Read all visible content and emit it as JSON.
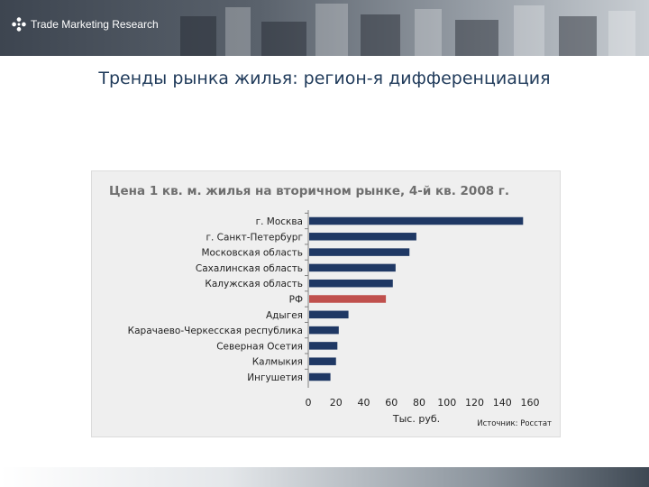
{
  "header": {
    "logo_text": "Trade Marketing Research"
  },
  "page": {
    "title": "Тренды рынка жилья: регион-я дифференциация"
  },
  "colors": {
    "bar": "#1f3864",
    "highlight": "#c0504d",
    "panel": "#efefef",
    "title": "#1f3a5a"
  },
  "chart_data": {
    "type": "bar",
    "orientation": "horizontal",
    "title": "Цена 1 кв. м. жилья на вторичном рынке, 4-й кв. 2008 г.",
    "xlabel": "Тыс. руб.",
    "ylabel": "",
    "source": "Источник: Росстат",
    "xlim": [
      0,
      160
    ],
    "xticks": [
      0,
      20,
      40,
      60,
      80,
      100,
      120,
      140,
      160
    ],
    "categories": [
      "г. Москва",
      "г. Санкт-Петербург",
      "Московская область",
      "Сахалинская область",
      "Калужская область",
      "РФ",
      "Адыгея",
      "Карачаево-Черкесская республика",
      "Северная Осетия",
      "Калмыкия",
      "Ингушетия"
    ],
    "values": [
      155,
      78,
      73,
      63,
      61,
      56,
      29,
      22,
      21,
      20,
      16
    ],
    "highlight_category": "РФ"
  }
}
